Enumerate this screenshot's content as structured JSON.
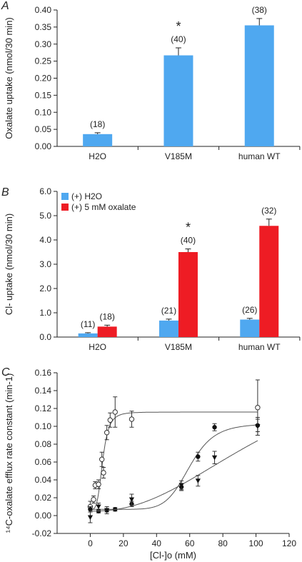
{
  "chart_data": [
    {
      "panel": "A",
      "type": "bar",
      "categories": [
        "H2O",
        "V185M",
        "human WT"
      ],
      "series": [
        {
          "values": [
            0.036,
            0.267,
            0.355
          ],
          "errors": [
            0.004,
            0.022,
            0.02
          ],
          "n_labels": [
            "(18)",
            "(40)",
            "(38)"
          ],
          "color": "#4fa8f0"
        }
      ],
      "significance": [
        "",
        "*",
        ""
      ],
      "ylabel": "Oxalate uptake (nmol/30 min)",
      "ylim": [
        0,
        0.4
      ],
      "yticks": [
        "0.00",
        "0.05",
        "0.10",
        "0.15",
        "0.20",
        "0.25",
        "0.30",
        "0.35",
        "0.40"
      ],
      "grid": false
    },
    {
      "panel": "B",
      "type": "bar",
      "categories": [
        "H2O",
        "V185M",
        "human WT"
      ],
      "series": [
        {
          "name": "(+) H2O",
          "values": [
            0.15,
            0.68,
            0.72
          ],
          "errors": [
            0.03,
            0.06,
            0.05
          ],
          "n_labels": [
            "(11)",
            "(21)",
            "(26)"
          ],
          "color": "#4fa8f0"
        },
        {
          "name": "(+) 5 mM oxalate",
          "values": [
            0.43,
            3.5,
            4.58
          ],
          "errors": [
            0.06,
            0.13,
            0.28
          ],
          "n_labels": [
            "(18)",
            "(40)",
            "(32)"
          ],
          "color": "#ee1c24"
        }
      ],
      "significance": [
        "",
        "*",
        ""
      ],
      "ylabel": "Cl- uptake (nmol/30 min)",
      "ylim": [
        0,
        6
      ],
      "yticks": [
        "0.0",
        "1.0",
        "2.0",
        "3.0",
        "4.0",
        "5.0",
        "6.0"
      ],
      "legend": "top-left",
      "grid": false
    },
    {
      "panel": "C",
      "type": "scatter",
      "xlabel": "[Cl-]o (mM)",
      "ylabel": "¹⁴C-oxalate efflux rate constant (min-1)",
      "xlim": [
        -20,
        120
      ],
      "ylim": [
        -0.02,
        0.16
      ],
      "xticks": [
        "0",
        "20",
        "40",
        "60",
        "80",
        "100",
        "120"
      ],
      "yticks": [
        "-0.02",
        "0.00",
        "0.02",
        "0.04",
        "0.06",
        "0.08",
        "0.10",
        "0.12",
        "0.14",
        "0.16"
      ],
      "series": [
        {
          "marker": "open-circle",
          "points": [
            [
              0,
              0.01
            ],
            [
              2,
              0.018
            ],
            [
              3,
              0.034
            ],
            [
              5,
              0.035
            ],
            [
              7,
              0.063
            ],
            [
              8,
              0.048
            ],
            [
              10,
              0.093
            ],
            [
              12,
              0.107
            ],
            [
              15,
              0.116
            ],
            [
              25,
              0.108
            ],
            [
              101,
              0.121
            ]
          ],
          "errors": [
            0.006,
            0.004,
            0.004,
            0.005,
            0.008,
            0.006,
            0.008,
            0.008,
            0.017,
            0.009,
            0.031
          ],
          "fit": {
            "bottom": 0.007,
            "top": 0.116,
            "ec50": 7.5,
            "hill": 4
          }
        },
        {
          "marker": "filled-circle",
          "points": [
            [
              0,
              0.007
            ],
            [
              5,
              0.005
            ],
            [
              10,
              0.006
            ],
            [
              15,
              0.007
            ],
            [
              25,
              0.013
            ],
            [
              55,
              0.032
            ],
            [
              65,
              0.066
            ],
            [
              75,
              0.099
            ],
            [
              101,
              0.101
            ]
          ],
          "errors": [
            0.003,
            0.002,
            0.002,
            0.002,
            0.003,
            0.004,
            0.005,
            0.004,
            0.007
          ],
          "fit": {
            "bottom": 0.007,
            "top": 0.103,
            "ec50": 60,
            "hill": 8
          }
        },
        {
          "marker": "filled-triangle-down",
          "points": [
            [
              0,
              -0.002
            ],
            [
              5,
              0.01
            ],
            [
              10,
              0.006
            ],
            [
              25,
              0.018
            ],
            [
              55,
              0.034
            ],
            [
              65,
              0.039
            ],
            [
              75,
              0.065
            ],
            [
              101,
              0.1
            ]
          ],
          "errors": [
            0.006,
            0.004,
            0.004,
            0.006,
            0.005,
            0.006,
            0.007,
            0.01
          ],
          "fit": {
            "bottom": 0.005,
            "top": 0.18,
            "ec50": 110,
            "hill": 2.3
          }
        }
      ],
      "grid": false
    }
  ]
}
